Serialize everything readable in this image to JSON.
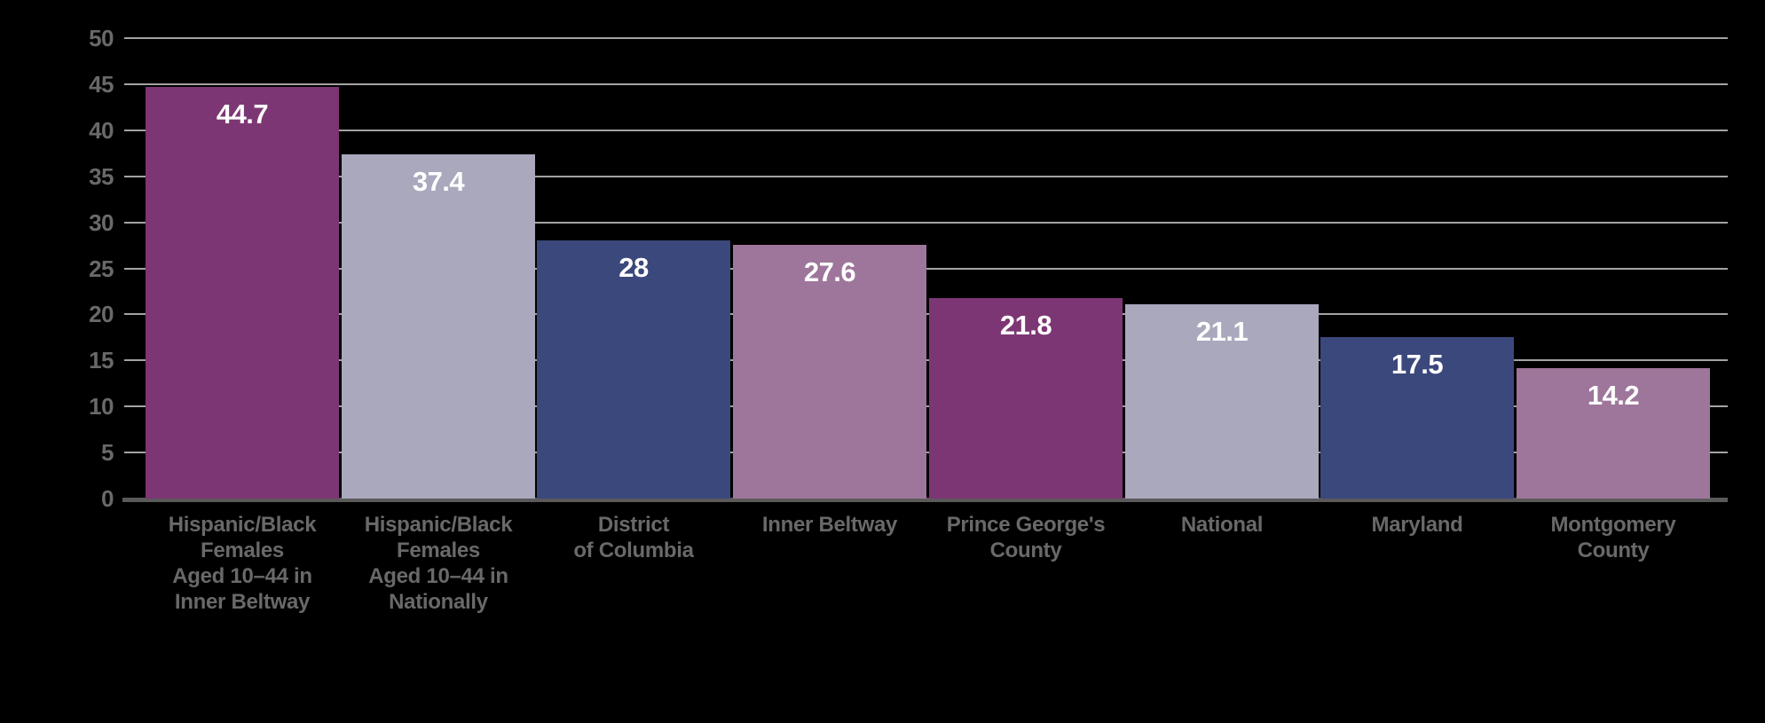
{
  "chart_data": {
    "type": "bar",
    "title": "",
    "xlabel": "",
    "ylabel": "",
    "categories": [
      [
        "Hispanic/Black",
        "Females",
        "Aged 10–44 in",
        "Inner Beltway"
      ],
      [
        "Hispanic/Black",
        "Females",
        "Aged 10–44 in",
        "Nationally"
      ],
      [
        "District",
        "of Columbia"
      ],
      [
        "Inner Beltway"
      ],
      [
        "Prince George's",
        "County"
      ],
      [
        "National"
      ],
      [
        "Maryland"
      ],
      [
        "Montgomery",
        "County"
      ]
    ],
    "values": [
      44.7,
      37.4,
      28,
      27.6,
      21.8,
      21.1,
      17.5,
      14.2
    ],
    "value_labels": [
      "44.7",
      "37.4",
      "28",
      "27.6",
      "21.8",
      "21.1",
      "17.5",
      "14.2"
    ],
    "bar_colors": [
      "#7d3674",
      "#a9a8bd",
      "#3b487c",
      "#9e769b",
      "#7d3674",
      "#a9a8bd",
      "#3b487c",
      "#9e769b"
    ],
    "ylim": [
      0,
      50
    ],
    "y_tick_step": 5,
    "y_ticks": [
      "0",
      "5",
      "10",
      "15",
      "20",
      "25",
      "30",
      "35",
      "40",
      "45",
      "50"
    ],
    "grid": "horizontal gridlines, drawn behind bars, on black background",
    "legend": "none",
    "colors": {
      "background": "#000000",
      "gridline": "#a3a3a3",
      "axis_line": "#5a5a5a",
      "tick_label": "#696969",
      "category_label": "#696969",
      "value_label": "#ffffff"
    }
  }
}
